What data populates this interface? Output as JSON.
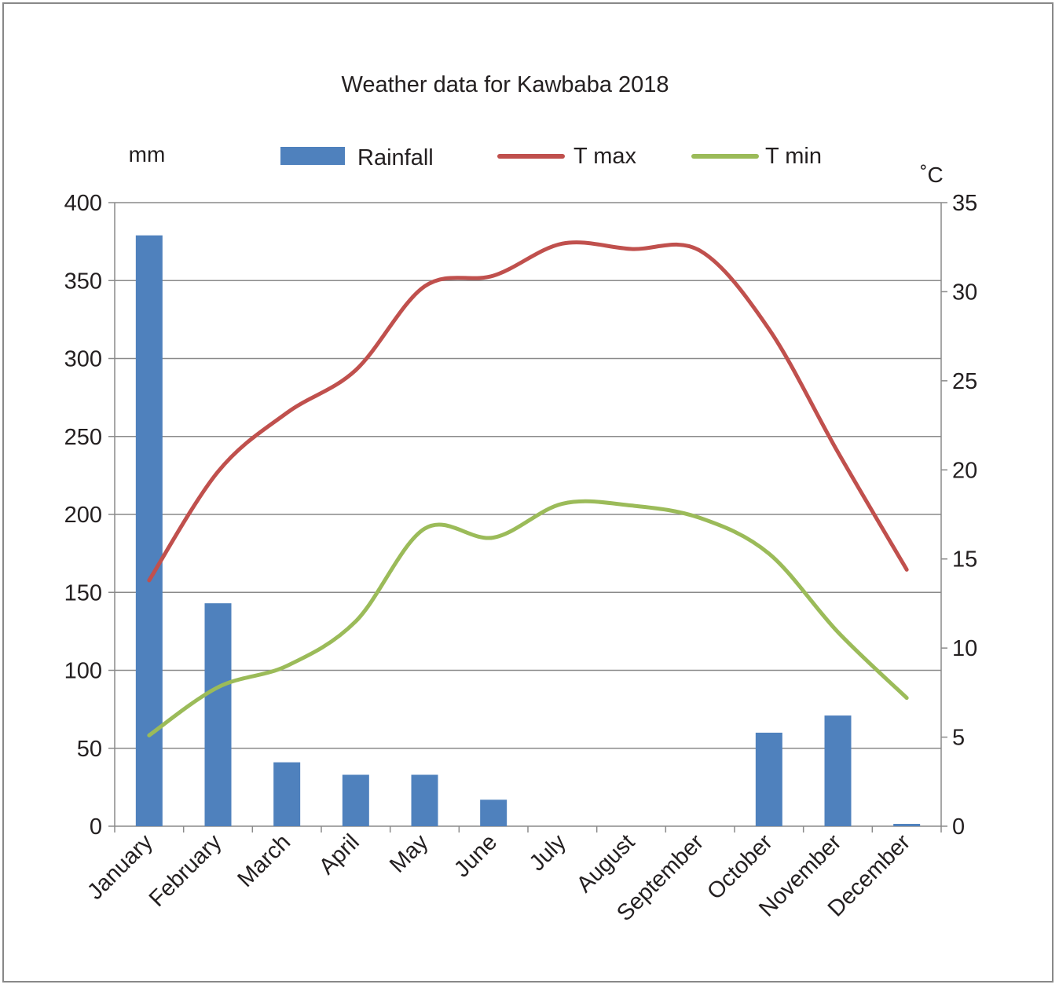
{
  "chart_data": {
    "type": "bar+line",
    "title": "Weather data for Kawbaba 2018",
    "left_axis_label": "mm",
    "right_axis_label": "˚C",
    "categories": [
      "January",
      "February",
      "March",
      "April",
      "May",
      "June",
      "July",
      "August",
      "September",
      "October",
      "November",
      "December"
    ],
    "left_ylim": [
      0,
      400
    ],
    "left_ticks": [
      0,
      50,
      100,
      150,
      200,
      250,
      300,
      350,
      400
    ],
    "right_ylim": [
      0,
      35
    ],
    "right_ticks": [
      0,
      5,
      10,
      15,
      20,
      25,
      30,
      35
    ],
    "grid": true,
    "legend_position": "top",
    "series": [
      {
        "name": "Rainfall",
        "type": "bar",
        "axis": "left",
        "color": "#4f81bd",
        "values": [
          379,
          143,
          41,
          33,
          33,
          17,
          0,
          0,
          0,
          60,
          71,
          1.5
        ]
      },
      {
        "name": "T max",
        "type": "line",
        "axis": "right",
        "color": "#c0504d",
        "values": [
          13.8,
          19.9,
          23.2,
          25.6,
          30.3,
          30.9,
          32.7,
          32.4,
          32.3,
          27.9,
          21.0,
          14.4
        ]
      },
      {
        "name": "T min",
        "type": "line",
        "axis": "right",
        "color": "#9bbb59",
        "values": [
          5.1,
          7.8,
          9.0,
          11.5,
          16.7,
          16.2,
          18.1,
          18.0,
          17.3,
          15.3,
          10.9,
          7.2
        ]
      }
    ]
  }
}
